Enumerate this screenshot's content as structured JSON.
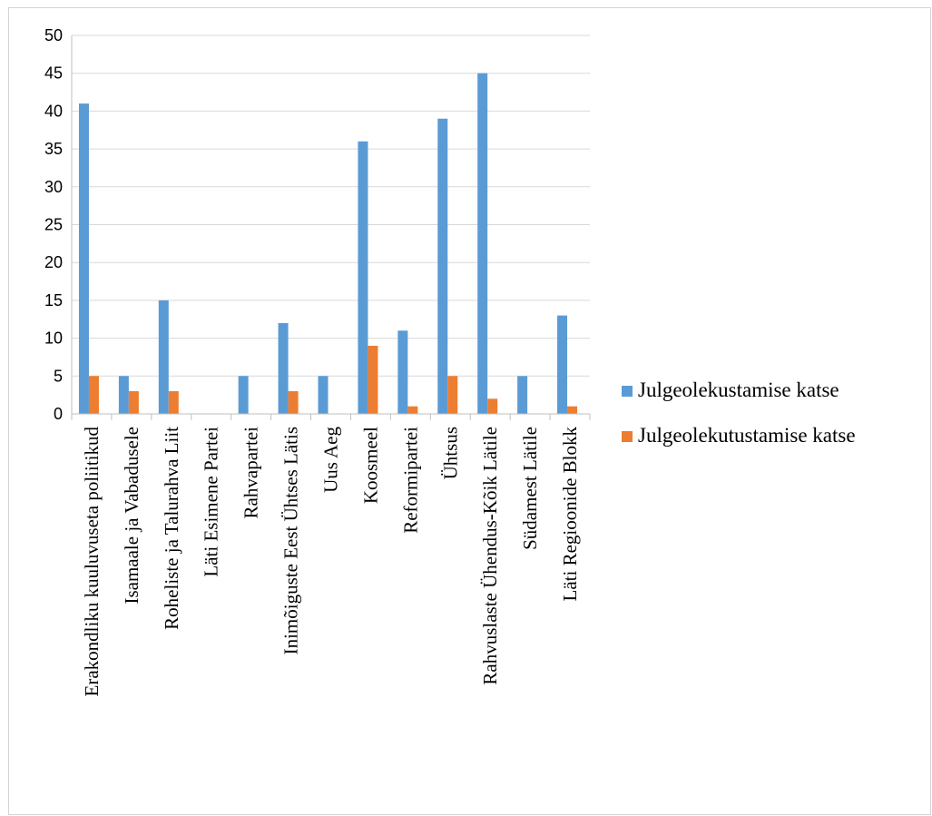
{
  "chart_data": {
    "type": "bar",
    "categories": [
      "Erakondliku kuuluvuseta poliitikud",
      "Isamaale ja Vabadusele",
      "Roheliste ja Talurahva Liit",
      "Läti Esimene Partei",
      "Rahvapartei",
      "Inimõiguste Eest Ühtses Lätis",
      "Uus Aeg",
      "Koosmeel",
      "Reformipartei",
      "Ühtsus",
      "Rahvuslaste Ühendus-Kõik Lätile",
      "Südamest Lätile",
      "Läti Regioonide Blokk"
    ],
    "series": [
      {
        "name": "Julgeolekustamise katse",
        "color": "#5b9bd5",
        "values": [
          41,
          5,
          15,
          0,
          5,
          12,
          5,
          36,
          11,
          39,
          45,
          5,
          13
        ]
      },
      {
        "name": "Julgeolekutustamise katse",
        "color": "#ed7d31",
        "values": [
          5,
          3,
          3,
          0,
          0,
          3,
          0,
          9,
          1,
          5,
          2,
          0,
          1
        ]
      }
    ],
    "ylim": [
      0,
      50
    ],
    "yticks": [
      0,
      5,
      10,
      15,
      20,
      25,
      30,
      35,
      40,
      45,
      50
    ],
    "grid": true,
    "legend": "right",
    "title": "",
    "xlabel": "",
    "ylabel": ""
  }
}
